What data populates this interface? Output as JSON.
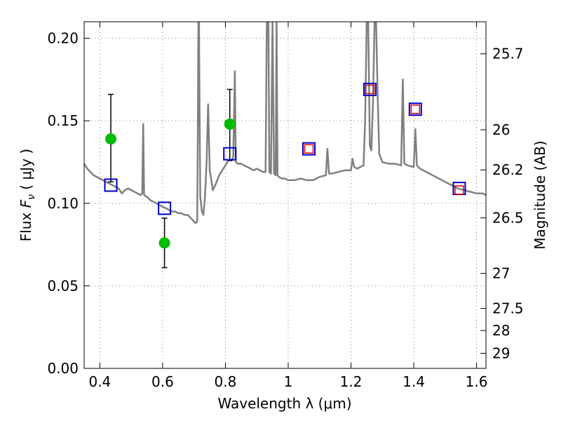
{
  "chart_data": {
    "type": "scatter",
    "xlabel": "Wavelength  λ (μm)",
    "ylabel": "Flux  F_ν  ( μJy )",
    "ylabel_parts": {
      "prefix": "Flux  ",
      "symbol": "F",
      "subscript": "ν",
      "unit": "  ( μJy )"
    },
    "ylabel_right": "Magnitude (AB)",
    "xlim": [
      0.35,
      1.63
    ],
    "ylim": [
      0.0,
      0.21
    ],
    "grid": true,
    "x_ticks": [
      {
        "value": 0.4,
        "label": "0.4"
      },
      {
        "value": 0.6,
        "label": "0.6"
      },
      {
        "value": 0.8,
        "label": "0.8"
      },
      {
        "value": 1.0,
        "label": "1"
      },
      {
        "value": 1.2,
        "label": "1.2"
      },
      {
        "value": 1.4,
        "label": "1.4"
      },
      {
        "value": 1.6,
        "label": "1.6"
      }
    ],
    "y_ticks": [
      {
        "value": 0.0,
        "label": "0.00"
      },
      {
        "value": 0.05,
        "label": "0.05"
      },
      {
        "value": 0.1,
        "label": "0.10"
      },
      {
        "value": 0.15,
        "label": "0.15"
      },
      {
        "value": 0.2,
        "label": "0.20"
      }
    ],
    "mag_ticks": [
      {
        "value": 25.7,
        "label": "25.7"
      },
      {
        "value": 26.0,
        "label": "26"
      },
      {
        "value": 26.2,
        "label": "26.2"
      },
      {
        "value": 26.5,
        "label": "26.5"
      },
      {
        "value": 27.0,
        "label": "27"
      },
      {
        "value": 27.5,
        "label": "27.5"
      },
      {
        "value": 28.0,
        "label": "28"
      },
      {
        "value": 29.0,
        "label": "29"
      }
    ],
    "series": [
      {
        "name": "observed",
        "marker": "circle",
        "color": "#00bb00",
        "points": [
          {
            "x": 0.435,
            "y": 0.139,
            "yerr_low": 0.026,
            "yerr_high": 0.027
          },
          {
            "x": 0.606,
            "y": 0.076,
            "yerr_low": 0.015,
            "yerr_high": 0.015
          },
          {
            "x": 0.814,
            "y": 0.148,
            "yerr_low": 0.022,
            "yerr_high": 0.021
          }
        ]
      },
      {
        "name": "model_blue",
        "marker": "square",
        "color": "#0000cc",
        "points": [
          {
            "x": 0.435,
            "y": 0.111
          },
          {
            "x": 0.606,
            "y": 0.097
          },
          {
            "x": 0.814,
            "y": 0.13
          },
          {
            "x": 1.066,
            "y": 0.133
          },
          {
            "x": 1.26,
            "y": 0.169
          },
          {
            "x": 1.405,
            "y": 0.157
          },
          {
            "x": 1.545,
            "y": 0.109
          }
        ]
      },
      {
        "name": "model_red",
        "marker": "square",
        "color": "#dd0000",
        "points": [
          {
            "x": 1.066,
            "y": 0.133
          },
          {
            "x": 1.26,
            "y": 0.169
          },
          {
            "x": 1.405,
            "y": 0.157
          },
          {
            "x": 1.545,
            "y": 0.108
          }
        ]
      }
    ],
    "model_spectrum": {
      "name": "model_sed",
      "color": "#808080",
      "points": [
        [
          0.35,
          0.124
        ],
        [
          0.36,
          0.121
        ],
        [
          0.37,
          0.119
        ],
        [
          0.38,
          0.117
        ],
        [
          0.39,
          0.116
        ],
        [
          0.4,
          0.115
        ],
        [
          0.41,
          0.114
        ],
        [
          0.42,
          0.113
        ],
        [
          0.43,
          0.112
        ],
        [
          0.44,
          0.111
        ],
        [
          0.45,
          0.11
        ],
        [
          0.46,
          0.109
        ],
        [
          0.47,
          0.106
        ],
        [
          0.48,
          0.108
        ],
        [
          0.49,
          0.109
        ],
        [
          0.5,
          0.108
        ],
        [
          0.51,
          0.107
        ],
        [
          0.52,
          0.106
        ],
        [
          0.53,
          0.105
        ],
        [
          0.535,
          0.106
        ],
        [
          0.538,
          0.148
        ],
        [
          0.541,
          0.105
        ],
        [
          0.55,
          0.104
        ],
        [
          0.56,
          0.102
        ],
        [
          0.57,
          0.101
        ],
        [
          0.58,
          0.1
        ],
        [
          0.59,
          0.099
        ],
        [
          0.6,
          0.098
        ],
        [
          0.61,
          0.097
        ],
        [
          0.62,
          0.096
        ],
        [
          0.63,
          0.095
        ],
        [
          0.64,
          0.095
        ],
        [
          0.65,
          0.094
        ],
        [
          0.66,
          0.094
        ],
        [
          0.67,
          0.093
        ],
        [
          0.68,
          0.093
        ],
        [
          0.69,
          0.091
        ],
        [
          0.7,
          0.089
        ],
        [
          0.705,
          0.088
        ],
        [
          0.71,
          0.089
        ],
        [
          0.712,
          0.14
        ],
        [
          0.714,
          0.21
        ],
        [
          0.716,
          0.21
        ],
        [
          0.718,
          0.15
        ],
        [
          0.72,
          0.104
        ],
        [
          0.725,
          0.095
        ],
        [
          0.73,
          0.093
        ],
        [
          0.735,
          0.104
        ],
        [
          0.74,
          0.125
        ],
        [
          0.745,
          0.16
        ],
        [
          0.75,
          0.12
        ],
        [
          0.76,
          0.108
        ],
        [
          0.77,
          0.112
        ],
        [
          0.78,
          0.117
        ],
        [
          0.79,
          0.12
        ],
        [
          0.8,
          0.123
        ],
        [
          0.81,
          0.126
        ],
        [
          0.82,
          0.126
        ],
        [
          0.825,
          0.128
        ],
        [
          0.83,
          0.18
        ],
        [
          0.833,
          0.125
        ],
        [
          0.84,
          0.124
        ],
        [
          0.85,
          0.124
        ],
        [
          0.86,
          0.123
        ],
        [
          0.87,
          0.122
        ],
        [
          0.88,
          0.121
        ],
        [
          0.89,
          0.12
        ],
        [
          0.9,
          0.121
        ],
        [
          0.91,
          0.12
        ],
        [
          0.92,
          0.119
        ],
        [
          0.928,
          0.119
        ],
        [
          0.932,
          0.21
        ],
        [
          0.937,
          0.21
        ],
        [
          0.94,
          0.119
        ],
        [
          0.945,
          0.118
        ],
        [
          0.95,
          0.21
        ],
        [
          0.955,
          0.118
        ],
        [
          0.96,
          0.117
        ],
        [
          0.963,
          0.21
        ],
        [
          0.966,
          0.117
        ],
        [
          0.97,
          0.116
        ],
        [
          0.98,
          0.115
        ],
        [
          0.99,
          0.115
        ],
        [
          1.0,
          0.114
        ],
        [
          1.02,
          0.114
        ],
        [
          1.04,
          0.115
        ],
        [
          1.06,
          0.114
        ],
        [
          1.08,
          0.114
        ],
        [
          1.1,
          0.116
        ],
        [
          1.12,
          0.117
        ],
        [
          1.125,
          0.133
        ],
        [
          1.13,
          0.118
        ],
        [
          1.14,
          0.118
        ],
        [
          1.16,
          0.119
        ],
        [
          1.18,
          0.12
        ],
        [
          1.2,
          0.12
        ],
        [
          1.205,
          0.127
        ],
        [
          1.21,
          0.122
        ],
        [
          1.22,
          0.121
        ],
        [
          1.23,
          0.122
        ],
        [
          1.24,
          0.123
        ],
        [
          1.245,
          0.15
        ],
        [
          1.25,
          0.21
        ],
        [
          1.255,
          0.21
        ],
        [
          1.26,
          0.135
        ],
        [
          1.265,
          0.132
        ],
        [
          1.27,
          0.16
        ],
        [
          1.275,
          0.21
        ],
        [
          1.28,
          0.21
        ],
        [
          1.285,
          0.165
        ],
        [
          1.29,
          0.13
        ],
        [
          1.3,
          0.125
        ],
        [
          1.32,
          0.124
        ],
        [
          1.34,
          0.124
        ],
        [
          1.36,
          0.123
        ],
        [
          1.365,
          0.175
        ],
        [
          1.37,
          0.124
        ],
        [
          1.38,
          0.123
        ],
        [
          1.4,
          0.122
        ],
        [
          1.405,
          0.145
        ],
        [
          1.41,
          0.123
        ],
        [
          1.42,
          0.121
        ],
        [
          1.44,
          0.119
        ],
        [
          1.46,
          0.117
        ],
        [
          1.48,
          0.115
        ],
        [
          1.5,
          0.113
        ],
        [
          1.52,
          0.111
        ],
        [
          1.54,
          0.109
        ],
        [
          1.56,
          0.108
        ],
        [
          1.58,
          0.107
        ],
        [
          1.6,
          0.106
        ],
        [
          1.62,
          0.106
        ],
        [
          1.63,
          0.105
        ]
      ]
    }
  }
}
